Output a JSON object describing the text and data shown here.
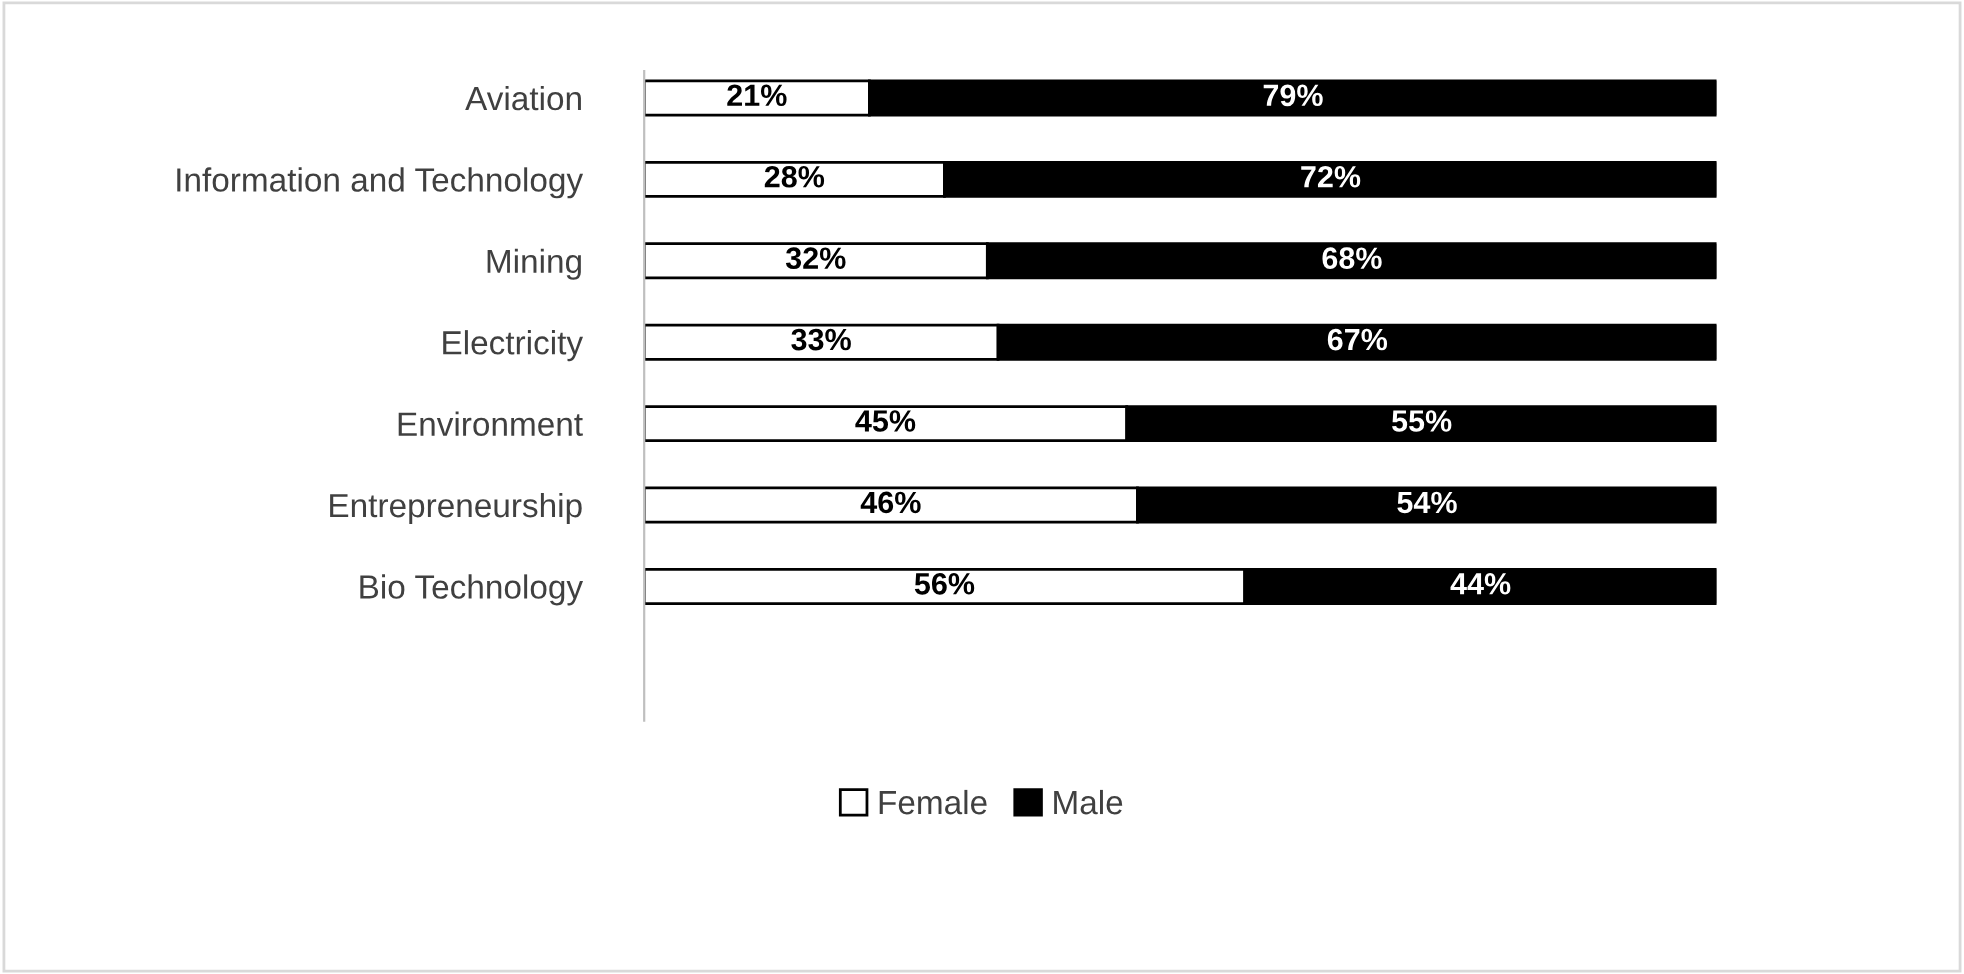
{
  "chart_data": {
    "type": "bar",
    "orientation": "horizontal",
    "stacked": true,
    "categories": [
      "Aviation",
      "Information and Technology",
      "Mining",
      "Electricity",
      "Environment",
      "Entrepreneurship",
      "Bio Technology"
    ],
    "series": [
      {
        "name": "Female",
        "color": "#ffffff",
        "values": [
          21,
          28,
          32,
          33,
          45,
          46,
          56
        ],
        "value_labels": [
          "21%",
          "28%",
          "32%",
          "33%",
          "45%",
          "46%",
          "56%"
        ]
      },
      {
        "name": "Male",
        "color": "#000000",
        "values": [
          79,
          72,
          68,
          67,
          55,
          54,
          44
        ],
        "value_labels": [
          "79%",
          "72%",
          "68%",
          "67%",
          "55%",
          "54%",
          "44%"
        ]
      }
    ],
    "legend": "bottom",
    "grid": false
  }
}
